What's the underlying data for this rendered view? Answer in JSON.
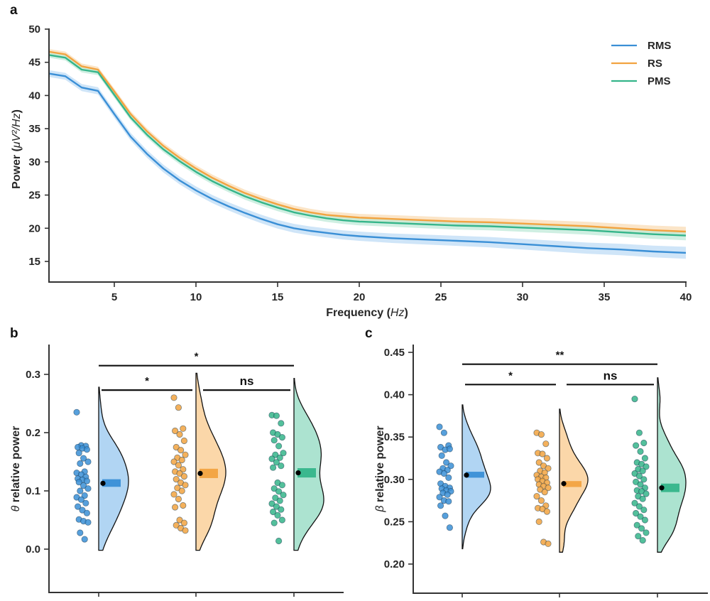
{
  "colors": {
    "RMS": "#3a8fd6",
    "RS": "#f2a340",
    "PMS": "#35b58a",
    "RMS_fill": "#a9d0f2",
    "RS_fill": "#fbd3a0",
    "PMS_fill": "#a3e0cb",
    "RMS_band": "#bfdcf5",
    "RS_band": "#f9dcb5",
    "PMS_band": "#bfead8"
  },
  "chart_data": [
    {
      "panel": "a",
      "type": "line",
      "title": "",
      "xlabel": "Frequency (Hz)",
      "xlabel_main": "Frequency (",
      "xlabel_unit": "Hz",
      "xlabel_close": ")",
      "ylabel_main": "Power (",
      "ylabel_unit": "μV²/Hz",
      "ylabel_close": ")",
      "ylabel": "Power (μV²/Hz)",
      "xlim": [
        1,
        40
      ],
      "ylim": [
        12,
        50
      ],
      "xticks": [
        5,
        10,
        15,
        20,
        25,
        30,
        35,
        40
      ],
      "yticks": [
        15,
        20,
        25,
        30,
        35,
        40,
        45,
        50
      ],
      "legend": {
        "placement": "top-right",
        "entries": [
          "RMS",
          "RS",
          "PMS"
        ]
      },
      "x": [
        1,
        2,
        3,
        4,
        5,
        6,
        7,
        8,
        9,
        10,
        11,
        12,
        13,
        14,
        15,
        16,
        17,
        18,
        19,
        20,
        22,
        24,
        26,
        28,
        30,
        32,
        34,
        36,
        38,
        40
      ],
      "series": [
        {
          "name": "RMS",
          "band": 0.5,
          "values": [
            43.3,
            42.9,
            41.2,
            40.7,
            37.2,
            33.8,
            31.2,
            29.0,
            27.2,
            25.7,
            24.4,
            23.3,
            22.3,
            21.4,
            20.6,
            20.0,
            19.6,
            19.3,
            19.0,
            18.8,
            18.5,
            18.3,
            18.1,
            17.9,
            17.6,
            17.3,
            17.0,
            16.8,
            16.5,
            16.3
          ]
        },
        {
          "name": "RS",
          "band": 0.4,
          "values": [
            46.6,
            46.2,
            44.4,
            43.9,
            40.6,
            37.2,
            34.6,
            32.4,
            30.6,
            29.0,
            27.6,
            26.4,
            25.3,
            24.4,
            23.6,
            22.9,
            22.4,
            22.0,
            21.8,
            21.6,
            21.4,
            21.2,
            21.0,
            20.9,
            20.7,
            20.5,
            20.3,
            20.0,
            19.7,
            19.5
          ]
        },
        {
          "name": "PMS",
          "band": 0.4,
          "values": [
            46.1,
            45.7,
            43.9,
            43.5,
            40.1,
            36.7,
            34.1,
            31.9,
            30.1,
            28.5,
            27.1,
            25.9,
            24.8,
            23.9,
            23.1,
            22.4,
            21.9,
            21.5,
            21.2,
            21.0,
            20.8,
            20.6,
            20.4,
            20.3,
            20.1,
            19.9,
            19.7,
            19.4,
            19.1,
            18.9
          ]
        }
      ]
    },
    {
      "panel": "b",
      "type": "scatter",
      "subtype": "raincloud",
      "ylabel_symbol": "θ",
      "ylabel_text": " relative power",
      "ylabel": "θ relative power",
      "ylim": [
        -0.05,
        0.35
      ],
      "yticks": [
        "0.0",
        "0.1",
        "0.2",
        "0.3"
      ],
      "ytick_values": [
        0.0,
        0.1,
        0.2,
        0.3
      ],
      "categories": [
        "RMS",
        "RS",
        "PMS"
      ],
      "means": [
        0.113,
        0.13,
        0.131
      ],
      "box_ranges": [
        [
          0.107,
          0.12
        ],
        [
          0.122,
          0.138
        ],
        [
          0.123,
          0.139
        ]
      ],
      "density_range": [
        [
          -0.002,
          0.278
        ],
        [
          -0.002,
          0.302
        ],
        [
          -0.002,
          0.293
        ]
      ],
      "points": [
        [
          0.235,
          0.178,
          0.177,
          0.175,
          0.173,
          0.171,
          0.165,
          0.156,
          0.15,
          0.147,
          0.133,
          0.131,
          0.128,
          0.124,
          0.121,
          0.119,
          0.117,
          0.115,
          0.109,
          0.104,
          0.1,
          0.092,
          0.089,
          0.085,
          0.079,
          0.073,
          0.067,
          0.062,
          0.051,
          0.048,
          0.046,
          0.028,
          0.017
        ],
        [
          0.26,
          0.243,
          0.207,
          0.203,
          0.197,
          0.186,
          0.175,
          0.17,
          0.162,
          0.157,
          0.153,
          0.15,
          0.144,
          0.137,
          0.133,
          0.13,
          0.125,
          0.12,
          0.114,
          0.11,
          0.105,
          0.1,
          0.094,
          0.086,
          0.075,
          0.072,
          0.05,
          0.045,
          0.041,
          0.036,
          0.032
        ],
        [
          0.23,
          0.229,
          0.216,
          0.2,
          0.197,
          0.192,
          0.187,
          0.177,
          0.165,
          0.162,
          0.157,
          0.155,
          0.149,
          0.143,
          0.14,
          0.114,
          0.11,
          0.104,
          0.099,
          0.093,
          0.088,
          0.083,
          0.078,
          0.073,
          0.068,
          0.064,
          0.058,
          0.05,
          0.045,
          0.014
        ]
      ],
      "significance": [
        {
          "from": "RMS",
          "to": "PMS",
          "label": "*",
          "y": 0.315
        },
        {
          "from": "RMS",
          "to": "RS",
          "label": "*",
          "y": 0.273
        },
        {
          "from": "RS",
          "to": "PMS",
          "label": "ns",
          "y": 0.273
        }
      ]
    },
    {
      "panel": "c",
      "type": "scatter",
      "subtype": "raincloud",
      "ylabel_symbol": "β",
      "ylabel_text": " relative power",
      "ylabel": "β relative power",
      "ylim": [
        0.185,
        0.46
      ],
      "yticks": [
        "0.20",
        "0.25",
        "0.30",
        "0.35",
        "0.40",
        "0.45"
      ],
      "ytick_values": [
        0.2,
        0.25,
        0.3,
        0.35,
        0.4,
        0.45
      ],
      "categories": [
        "RMS",
        "RS",
        "PMS"
      ],
      "means": [
        0.305,
        0.295,
        0.29
      ],
      "box_ranges": [
        [
          0.302,
          0.309
        ],
        [
          0.291,
          0.298
        ],
        [
          0.285,
          0.295
        ]
      ],
      "density_range": [
        [
          0.218,
          0.388
        ],
        [
          0.214,
          0.383
        ],
        [
          0.214,
          0.42
        ]
      ],
      "points": [
        [
          0.362,
          0.355,
          0.34,
          0.338,
          0.335,
          0.336,
          0.328,
          0.32,
          0.316,
          0.313,
          0.311,
          0.309,
          0.307,
          0.302,
          0.295,
          0.292,
          0.29,
          0.289,
          0.287,
          0.286,
          0.284,
          0.282,
          0.279,
          0.275,
          0.274,
          0.269,
          0.257,
          0.243
        ],
        [
          0.355,
          0.353,
          0.342,
          0.331,
          0.33,
          0.325,
          0.32,
          0.316,
          0.313,
          0.31,
          0.308,
          0.305,
          0.303,
          0.302,
          0.3,
          0.298,
          0.296,
          0.294,
          0.292,
          0.29,
          0.288,
          0.285,
          0.28,
          0.275,
          0.269,
          0.266,
          0.265,
          0.262,
          0.25,
          0.226,
          0.224
        ],
        [
          0.395,
          0.355,
          0.343,
          0.34,
          0.333,
          0.325,
          0.32,
          0.318,
          0.315,
          0.312,
          0.31,
          0.307,
          0.304,
          0.3,
          0.297,
          0.294,
          0.29,
          0.287,
          0.286,
          0.283,
          0.28,
          0.277,
          0.272,
          0.268,
          0.264,
          0.26,
          0.256,
          0.252,
          0.246,
          0.242,
          0.237,
          0.233,
          0.228
        ]
      ],
      "significance": [
        {
          "from": "RMS",
          "to": "PMS",
          "label": "**",
          "y": 0.436
        },
        {
          "from": "RMS",
          "to": "RS",
          "label": "*",
          "y": 0.412
        },
        {
          "from": "RS",
          "to": "PMS",
          "label": "ns",
          "y": 0.412
        }
      ]
    }
  ],
  "panel_labels": [
    "a",
    "b",
    "c"
  ]
}
